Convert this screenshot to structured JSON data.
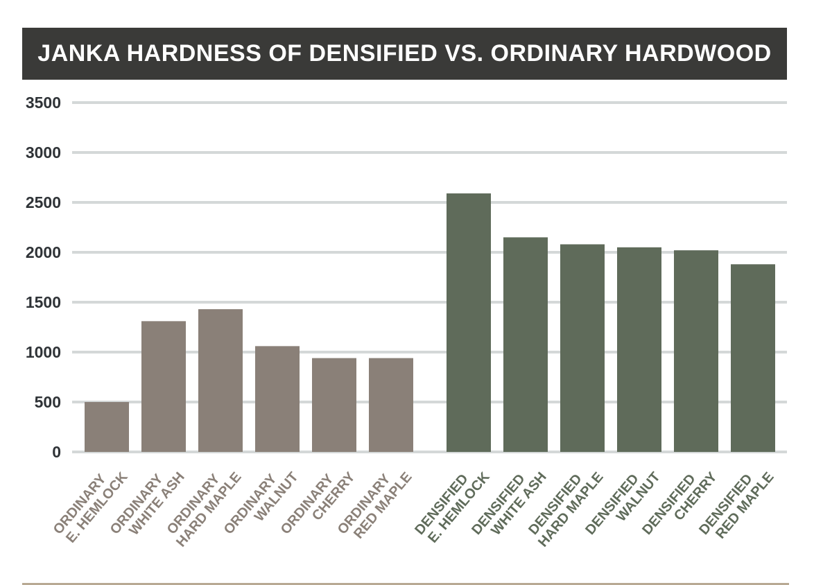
{
  "chart_data": {
    "type": "bar",
    "title": "JANKA HARDNESS OF DENSIFIED VS. ORDINARY HARDWOOD",
    "xlabel": "",
    "ylabel": "",
    "ylim": [
      0,
      3500
    ],
    "yticks": [
      "3500",
      "3000",
      "2500",
      "2000",
      "1500",
      "1000",
      "500",
      "0"
    ],
    "grid": true,
    "legend": "none",
    "colors": {
      "ordinary": "#8a8078",
      "densified": "#5f6b5a",
      "grid": "#d4d8d8",
      "title_bg": "#3a3a38"
    },
    "categories": [
      {
        "group": "ordinary",
        "line1": "ORDINARY",
        "line2": "E. HEMLOCK",
        "value": 500
      },
      {
        "group": "ordinary",
        "line1": "ORDINARY",
        "line2": "WHITE ASH",
        "value": 1310
      },
      {
        "group": "ordinary",
        "line1": "ORDINARY",
        "line2": "HARD MAPLE",
        "value": 1430
      },
      {
        "group": "ordinary",
        "line1": "ORDINARY",
        "line2": "WALNUT",
        "value": 1060
      },
      {
        "group": "ordinary",
        "line1": "ORDINARY",
        "line2": "CHERRY",
        "value": 940
      },
      {
        "group": "ordinary",
        "line1": "ORDINARY",
        "line2": "RED MAPLE",
        "value": 940
      },
      {
        "group": "densified",
        "line1": "DENSIFIED",
        "line2": "E. HEMLOCK",
        "value": 2590
      },
      {
        "group": "densified",
        "line1": "DENSIFIED",
        "line2": "WHITE ASH",
        "value": 2150
      },
      {
        "group": "densified",
        "line1": "DENSIFIED",
        "line2": "HARD MAPLE",
        "value": 2080
      },
      {
        "group": "densified",
        "line1": "DENSIFIED",
        "line2": "WALNUT",
        "value": 2050
      },
      {
        "group": "densified",
        "line1": "DENSIFIED",
        "line2": "CHERRY",
        "value": 2020
      },
      {
        "group": "densified",
        "line1": "DENSIFIED",
        "line2": "RED MAPLE",
        "value": 1880
      }
    ]
  }
}
